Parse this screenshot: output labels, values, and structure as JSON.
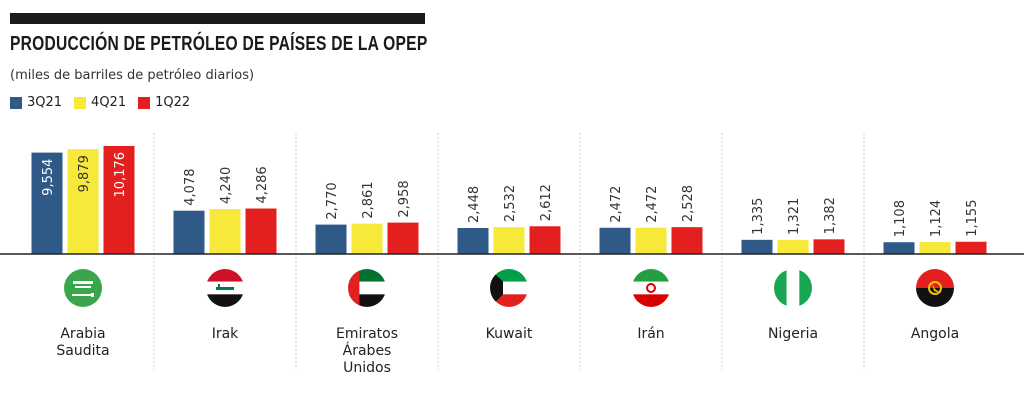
{
  "title": "PRODUCCIÓN DE PETRÓLEO DE PAÍSES DE LA OPEP",
  "subtitle": "(miles de barriles de petróleo diarios)",
  "chart_data": {
    "type": "bar",
    "categories": [
      {
        "label": [
          "Arabia",
          "Saudita"
        ],
        "flag": "saudi-arabia-flag-icon"
      },
      {
        "label": [
          "Irak"
        ],
        "flag": "iraq-flag-icon"
      },
      {
        "label": [
          "Emiratos",
          "Árabes",
          "Unidos"
        ],
        "flag": "uae-flag-icon"
      },
      {
        "label": [
          "Kuwait"
        ],
        "flag": "kuwait-flag-icon"
      },
      {
        "label": [
          "Irán"
        ],
        "flag": "iran-flag-icon"
      },
      {
        "label": [
          "Nigeria"
        ],
        "flag": "nigeria-flag-icon"
      },
      {
        "label": [
          "Angola"
        ],
        "flag": "angola-flag-icon"
      }
    ],
    "series": [
      {
        "name": "3Q21",
        "color": "#2f5a87",
        "values": [
          9554,
          4078,
          2770,
          2448,
          2472,
          1335,
          1108
        ],
        "labels": [
          "9,554",
          "4,078",
          "2,770",
          "2,448",
          "2,472",
          "1,335",
          "1,108"
        ]
      },
      {
        "name": "4Q21",
        "color": "#f7e93a",
        "values": [
          9879,
          4240,
          2861,
          2532,
          2472,
          1321,
          1124
        ],
        "labels": [
          "9,879",
          "4,240",
          "2,861",
          "2,532",
          "2,472",
          "1,321",
          "1,124"
        ]
      },
      {
        "name": "1Q22",
        "color": "#e41f1f",
        "values": [
          10176,
          4286,
          2958,
          2612,
          2528,
          1382,
          1155
        ],
        "labels": [
          "10,176",
          "4,286",
          "2,958",
          "2,612",
          "2,528",
          "1,382",
          "1,155"
        ]
      }
    ],
    "ylim": [
      0,
      10176
    ]
  }
}
